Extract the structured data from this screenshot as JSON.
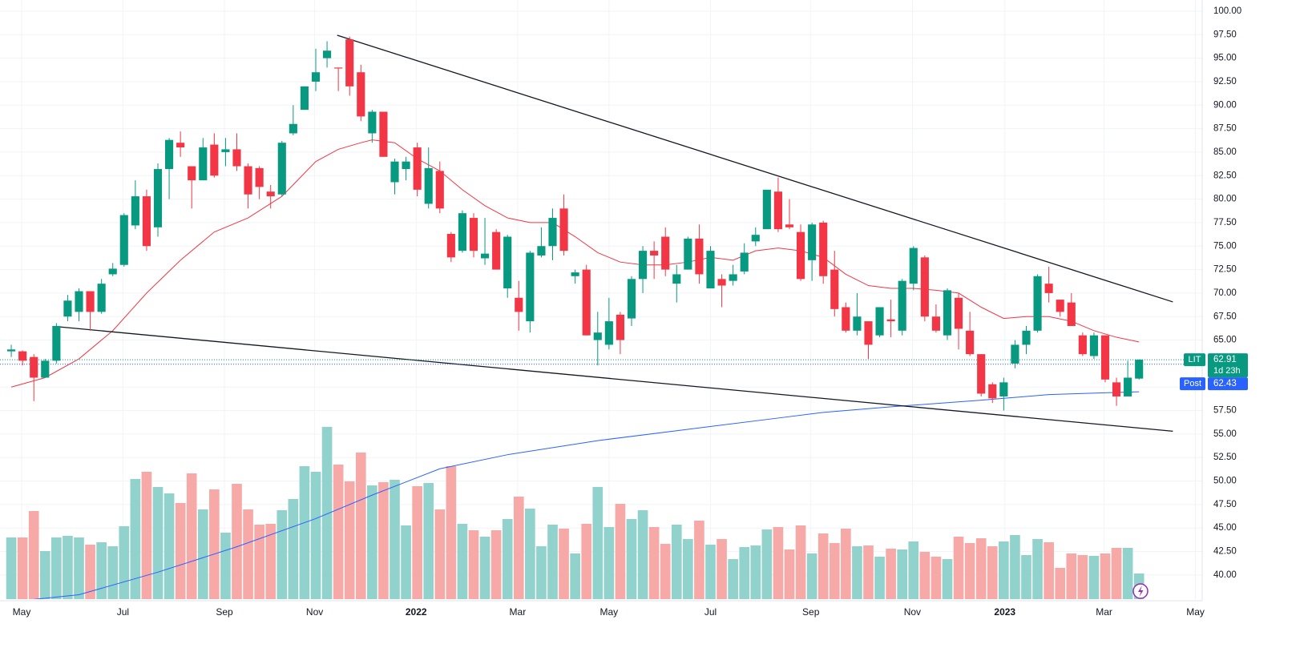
{
  "chart_data": {
    "type": "candlestick",
    "categories": [
      null,
      null,
      null,
      null,
      null,
      null,
      null,
      null,
      null,
      null,
      null,
      null,
      null,
      null,
      null,
      null,
      null,
      null,
      null,
      null,
      null,
      null,
      null,
      null,
      null,
      null,
      null,
      null,
      null,
      null,
      null,
      null,
      null,
      null,
      null,
      null,
      null,
      null,
      null,
      null,
      null,
      null,
      null,
      null,
      null,
      null,
      null,
      null,
      null,
      null,
      null,
      null,
      null,
      null,
      null,
      null,
      null,
      null,
      null,
      null,
      null,
      null,
      null,
      null,
      null,
      null,
      null,
      null,
      null,
      null,
      null,
      null,
      null,
      null,
      null,
      null,
      null,
      null,
      null,
      null,
      null,
      null,
      null,
      null,
      null,
      null,
      null,
      null,
      null,
      null,
      null,
      null,
      null,
      null,
      null,
      null,
      null,
      null,
      null,
      null,
      null
    ],
    "series": [
      {
        "name": "LIT",
        "up_color": "#089981",
        "down_color": "#f23645",
        "open": [
          63.8,
          63.8,
          63.2,
          61.0,
          62.8,
          67.5,
          68.0,
          70.2,
          68.0,
          72.0,
          73.0,
          77.2,
          80.3,
          77.0,
          83.2,
          86.0,
          83.5,
          82.0,
          85.8,
          85.0,
          85.3,
          83.5,
          83.3,
          80.8,
          80.5,
          87.0,
          89.5,
          92.5,
          95.0,
          94.0,
          97.0,
          93.5,
          87.0,
          89.3,
          81.8,
          83.2,
          85.5,
          79.5,
          83.0,
          76.3,
          74.5,
          78.0,
          73.7,
          76.5,
          70.5,
          69.5,
          67.0,
          74.0,
          75.0,
          79.0,
          71.8,
          72.5,
          65.0,
          64.5,
          67.7,
          67.3,
          71.5,
          74.5,
          76.0,
          71.0,
          72.5,
          75.8,
          70.5,
          71.5,
          71.3,
          72.3,
          75.5,
          76.8,
          80.8,
          77.3,
          76.5,
          73.5,
          77.5,
          72.5,
          68.5,
          66.0,
          67.0,
          65.5,
          67.2,
          66.0,
          71.0,
          73.8,
          67.5,
          65.5,
          69.5,
          66.0,
          63.5,
          60.3,
          59.0,
          62.5,
          64.5,
          66.0,
          71.0,
          69.3,
          69.0,
          65.5,
          63.3,
          65.5,
          60.5,
          59.0,
          60.9
        ],
        "high": [
          64.5,
          63.9,
          63.5,
          63.0,
          66.8,
          69.8,
          70.5,
          70.2,
          71.5,
          73.2,
          78.5,
          82.0,
          81.0,
          83.8,
          86.5,
          87.2,
          83.5,
          86.5,
          87.0,
          86.5,
          87.0,
          83.8,
          83.5,
          81.5,
          86.2,
          90.0,
          92.0,
          96.0,
          96.8,
          94.0,
          97.3,
          94.3,
          89.5,
          89.3,
          84.3,
          84.5,
          86.0,
          85.5,
          84.0,
          76.5,
          78.8,
          78.5,
          78.0,
          76.8,
          76.2,
          71.3,
          74.5,
          77.0,
          79.0,
          80.5,
          72.5,
          73.0,
          68.0,
          69.5,
          68.0,
          71.8,
          75.0,
          75.5,
          77.0,
          73.0,
          76.0,
          77.3,
          75.0,
          72.0,
          73.0,
          75.3,
          77.0,
          81.0,
          82.3,
          80.0,
          77.3,
          77.5,
          77.7,
          74.5,
          69.0,
          70.0,
          67.0,
          68.5,
          69.3,
          71.5,
          75.0,
          74.0,
          68.8,
          70.5,
          70.0,
          68.0,
          63.5,
          60.5,
          61.0,
          65.0,
          66.5,
          72.0,
          72.8,
          69.3,
          70.0,
          65.8,
          65.8,
          65.5,
          61.0,
          62.8,
          62.95
        ],
        "low": [
          63.2,
          62.3,
          58.5,
          61.0,
          62.5,
          67.0,
          67.0,
          66.0,
          67.8,
          71.8,
          72.8,
          76.8,
          74.5,
          76.0,
          80.0,
          84.5,
          79.0,
          82.0,
          82.3,
          83.5,
          83.0,
          79.0,
          80.0,
          79.0,
          80.3,
          86.8,
          89.5,
          91.5,
          94.0,
          91.5,
          91.0,
          88.3,
          86.0,
          84.5,
          80.5,
          82.0,
          80.3,
          79.0,
          78.5,
          73.3,
          74.3,
          73.8,
          73.0,
          72.5,
          69.5,
          66.0,
          65.8,
          73.8,
          73.5,
          74.0,
          71.0,
          65.5,
          62.3,
          64.0,
          63.5,
          66.5,
          70.0,
          71.5,
          71.8,
          69.0,
          72.5,
          71.0,
          70.5,
          68.5,
          70.8,
          72.0,
          75.0,
          76.8,
          76.5,
          76.8,
          71.3,
          71.3,
          71.0,
          67.5,
          65.8,
          65.5,
          63.0,
          65.3,
          65.3,
          65.5,
          70.3,
          67.0,
          65.8,
          65.0,
          64.0,
          63.3,
          59.0,
          58.3,
          57.5,
          62.0,
          63.5,
          65.8,
          69.0,
          67.5,
          66.5,
          63.3,
          63.0,
          60.5,
          58.0,
          59.0,
          60.8
        ],
        "close": [
          64.0,
          62.8,
          61.0,
          62.8,
          66.5,
          69.2,
          70.2,
          68.0,
          71.0,
          72.6,
          78.3,
          80.3,
          75.0,
          83.2,
          86.3,
          85.5,
          82.0,
          85.5,
          82.5,
          85.3,
          83.5,
          80.5,
          81.3,
          80.3,
          86.0,
          88.0,
          92.0,
          93.5,
          95.8,
          93.9,
          92.0,
          88.8,
          89.3,
          84.5,
          84.0,
          84.0,
          81.0,
          83.3,
          79.0,
          73.8,
          78.5,
          74.5,
          74.2,
          72.5,
          76.0,
          68.0,
          74.3,
          75.0,
          78.0,
          74.5,
          72.2,
          65.5,
          65.8,
          67.0,
          65.0,
          71.5,
          74.5,
          74.0,
          72.5,
          72.0,
          75.8,
          72.0,
          74.5,
          70.8,
          72.0,
          74.3,
          76.2,
          81.0,
          76.8,
          77.0,
          71.5,
          77.3,
          71.8,
          68.3,
          66.0,
          67.5,
          64.5,
          68.5,
          67.0,
          71.3,
          74.8,
          67.5,
          66.0,
          70.3,
          66.2,
          63.5,
          59.3,
          58.8,
          60.5,
          64.5,
          66.0,
          71.8,
          70.0,
          68.0,
          66.5,
          63.5,
          65.5,
          60.8,
          59.0,
          61.0,
          62.91
        ]
      }
    ],
    "volume": {
      "up_color": "#92d2cc",
      "down_color": "#f7a9a7",
      "vlim": [
        0,
        250
      ],
      "values": [
        77,
        77,
        110,
        60,
        77,
        79,
        77,
        68,
        71,
        66,
        91,
        150,
        159,
        140,
        132,
        120,
        157,
        112,
        137,
        83,
        144,
        112,
        93,
        94,
        111,
        125,
        166,
        159,
        215,
        168,
        147,
        183,
        142,
        146,
        149,
        92,
        141,
        145,
        112,
        166,
        94,
        86,
        78,
        86,
        100,
        128,
        113,
        66,
        93,
        88,
        57,
        94,
        140,
        90,
        119,
        100,
        111,
        90,
        69,
        93,
        75,
        98,
        68,
        75,
        50,
        65,
        67,
        87,
        90,
        62,
        92,
        57,
        82,
        70,
        88,
        66,
        67,
        53,
        63,
        62,
        72,
        59,
        53,
        50,
        78,
        70,
        76,
        66,
        72,
        80,
        55,
        75,
        71,
        39,
        57,
        55,
        54,
        57,
        64,
        64,
        32
      ]
    },
    "ma": [
      {
        "color": "#f23645",
        "x": [
          0,
          3,
          6,
          9,
          12,
          15,
          18,
          21,
          24,
          27,
          29,
          31,
          32,
          34,
          36,
          38,
          40,
          42,
          44,
          46,
          48,
          50,
          52,
          54,
          56,
          58,
          60,
          62,
          64,
          66,
          68,
          70,
          72,
          74,
          76,
          78,
          80,
          82,
          84,
          86,
          88,
          90,
          92,
          94,
          96,
          98,
          100
        ],
        "values": [
          60.0,
          61.0,
          63.0,
          66.0,
          70.0,
          73.5,
          76.5,
          78.0,
          80.3,
          84.0,
          85.3,
          86.0,
          86.3,
          86.0,
          84.3,
          83.0,
          81.0,
          79.3,
          78.0,
          77.5,
          77.5,
          76.0,
          74.3,
          73.3,
          73.0,
          73.0,
          73.3,
          73.8,
          73.5,
          74.5,
          74.8,
          74.5,
          73.8,
          72.0,
          70.8,
          70.5,
          70.5,
          70.3,
          70.0,
          68.5,
          67.3,
          67.5,
          67.5,
          67.0,
          66.0,
          65.3,
          64.8
        ]
      },
      {
        "color": "#2962ff",
        "x": [
          2,
          6,
          13,
          20,
          27,
          32,
          38,
          44,
          52,
          60,
          68,
          72,
          78,
          86,
          92,
          100
        ],
        "values": [
          37.4,
          37.9,
          40.3,
          43.0,
          46.0,
          48.5,
          51.3,
          52.8,
          54.3,
          55.5,
          56.7,
          57.3,
          57.9,
          58.6,
          59.2,
          59.5
        ]
      }
    ],
    "trendlines": [
      {
        "color": "#131722",
        "x": [
          28.9,
          103.0
        ],
        "values": [
          97.44,
          69.06
        ]
      },
      {
        "color": "#131722",
        "x": [
          4.3,
          103.0
        ],
        "values": [
          66.4,
          55.3
        ]
      }
    ],
    "xlim": [
      -1,
      105.6
    ],
    "ylim": [
      37.43,
      101.19
    ],
    "xticks": [
      {
        "value": 0.92,
        "label": "May"
      },
      {
        "value": 9.9,
        "label": "Jul"
      },
      {
        "value": 18.9,
        "label": "Sep"
      },
      {
        "value": 26.9,
        "label": "Nov"
      },
      {
        "value": 35.9,
        "label": "2022"
      },
      {
        "value": 44.9,
        "label": "Mar"
      },
      {
        "value": 53,
        "label": "May"
      },
      {
        "value": 62,
        "label": "Jul"
      },
      {
        "value": 70.9,
        "label": "Sep"
      },
      {
        "value": 79.9,
        "label": "Nov"
      },
      {
        "value": 88.1,
        "label": "2023"
      },
      {
        "value": 96.9,
        "label": "Mar"
      },
      {
        "value": 105,
        "label": "May"
      }
    ],
    "yticks": [
      {
        "value": 40,
        "label": "40.00"
      },
      {
        "value": 42.5,
        "label": "42.50"
      },
      {
        "value": 45,
        "label": "45.00"
      },
      {
        "value": 47.5,
        "label": "47.50"
      },
      {
        "value": 50,
        "label": "50.00"
      },
      {
        "value": 52.5,
        "label": "52.50"
      },
      {
        "value": 55,
        "label": "55.00"
      },
      {
        "value": 57.5,
        "label": "57.50"
      },
      {
        "value": 60,
        "label": "60.00"
      },
      {
        "value": 62.5,
        "label": "62.50"
      },
      {
        "value": 65,
        "label": "65.00"
      },
      {
        "value": 67.5,
        "label": "67.50"
      },
      {
        "value": 70,
        "label": "70.00"
      },
      {
        "value": 72.5,
        "label": "72.50"
      },
      {
        "value": 75,
        "label": "75.00"
      },
      {
        "value": 77.5,
        "label": "77.50"
      },
      {
        "value": 80,
        "label": "80.00"
      },
      {
        "value": 82.5,
        "label": "82.50"
      },
      {
        "value": 85,
        "label": "85.00"
      },
      {
        "value": 87.5,
        "label": "87.50"
      },
      {
        "value": 90,
        "label": "90.00"
      },
      {
        "value": 92.5,
        "label": "92.50"
      },
      {
        "value": 95,
        "label": "95.00"
      },
      {
        "value": 97.5,
        "label": "97.50"
      },
      {
        "value": 100,
        "label": "100.00"
      }
    ],
    "grid": true,
    "last_price": {
      "symbol": "LIT",
      "value": 62.91,
      "countdown": "1d 23h",
      "color": "#089981"
    },
    "post_price": {
      "label": "Post",
      "value": 62.43,
      "color": "#2962ff"
    }
  }
}
